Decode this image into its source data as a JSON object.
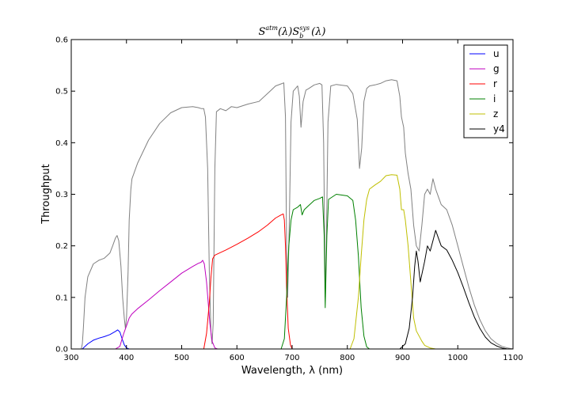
{
  "chart_data": {
    "type": "line",
    "title": "S^{atm}(λ)S_b^{sys}(λ)",
    "title_parts": {
      "main1": "S",
      "sup1": "atm",
      "mid1": "(λ)S",
      "sub2": "b",
      "sup2": "sys",
      "end": "(λ)"
    },
    "xlabel": "Wavelength, λ (nm)",
    "ylabel": "Throughput",
    "xlim": [
      300,
      1100
    ],
    "ylim": [
      0,
      0.6
    ],
    "x_ticks": [
      "300",
      "400",
      "500",
      "600",
      "700",
      "800",
      "900",
      "1000",
      "1100"
    ],
    "y_ticks": [
      "0.0",
      "0.1",
      "0.2",
      "0.3",
      "0.4",
      "0.5",
      "0.6"
    ],
    "grid": false,
    "legend_position": "top-right",
    "series": [
      {
        "name": "u",
        "color": "#0000ff",
        "points": [
          [
            320,
            0.0
          ],
          [
            325,
            0.005
          ],
          [
            330,
            0.01
          ],
          [
            340,
            0.017
          ],
          [
            350,
            0.021
          ],
          [
            360,
            0.024
          ],
          [
            370,
            0.028
          ],
          [
            375,
            0.031
          ],
          [
            380,
            0.034
          ],
          [
            384,
            0.037
          ],
          [
            388,
            0.033
          ],
          [
            392,
            0.02
          ],
          [
            396,
            0.008
          ],
          [
            400,
            0.002
          ],
          [
            405,
            0.0
          ]
        ]
      },
      {
        "name": "g",
        "color": "#bf00bf",
        "points": [
          [
            380,
            0.0
          ],
          [
            388,
            0.005
          ],
          [
            395,
            0.03
          ],
          [
            400,
            0.045
          ],
          [
            405,
            0.06
          ],
          [
            410,
            0.068
          ],
          [
            420,
            0.078
          ],
          [
            440,
            0.095
          ],
          [
            460,
            0.113
          ],
          [
            480,
            0.13
          ],
          [
            500,
            0.147
          ],
          [
            520,
            0.16
          ],
          [
            530,
            0.166
          ],
          [
            535,
            0.168
          ],
          [
            538,
            0.172
          ],
          [
            541,
            0.165
          ],
          [
            545,
            0.13
          ],
          [
            548,
            0.09
          ],
          [
            551,
            0.05
          ],
          [
            555,
            0.015
          ],
          [
            560,
            0.002
          ],
          [
            565,
            0.0
          ]
        ]
      },
      {
        "name": "r",
        "color": "#ff0000",
        "points": [
          [
            540,
            0.0
          ],
          [
            545,
            0.03
          ],
          [
            550,
            0.09
          ],
          [
            553,
            0.14
          ],
          [
            556,
            0.175
          ],
          [
            560,
            0.182
          ],
          [
            580,
            0.192
          ],
          [
            600,
            0.203
          ],
          [
            620,
            0.215
          ],
          [
            640,
            0.228
          ],
          [
            655,
            0.24
          ],
          [
            670,
            0.254
          ],
          [
            680,
            0.26
          ],
          [
            684,
            0.262
          ],
          [
            686,
            0.25
          ],
          [
            688,
            0.2
          ],
          [
            690,
            0.12
          ],
          [
            693,
            0.04
          ],
          [
            697,
            0.008
          ],
          [
            700,
            0.0
          ]
        ]
      },
      {
        "name": "i",
        "color": "#008000",
        "points": [
          [
            680,
            0.0
          ],
          [
            686,
            0.02
          ],
          [
            690,
            0.1
          ],
          [
            694,
            0.2
          ],
          [
            698,
            0.25
          ],
          [
            702,
            0.27
          ],
          [
            710,
            0.275
          ],
          [
            715,
            0.28
          ],
          [
            718,
            0.26
          ],
          [
            722,
            0.27
          ],
          [
            730,
            0.278
          ],
          [
            740,
            0.288
          ],
          [
            750,
            0.292
          ],
          [
            755,
            0.295
          ],
          [
            758,
            0.22
          ],
          [
            760,
            0.08
          ],
          [
            763,
            0.22
          ],
          [
            766,
            0.29
          ],
          [
            780,
            0.3
          ],
          [
            800,
            0.297
          ],
          [
            810,
            0.288
          ],
          [
            815,
            0.25
          ],
          [
            820,
            0.18
          ],
          [
            825,
            0.08
          ],
          [
            830,
            0.025
          ],
          [
            835,
            0.004
          ],
          [
            840,
            0.0
          ]
        ]
      },
      {
        "name": "z",
        "color": "#bfbf00",
        "points": [
          [
            805,
            0.0
          ],
          [
            812,
            0.02
          ],
          [
            820,
            0.1
          ],
          [
            825,
            0.18
          ],
          [
            830,
            0.25
          ],
          [
            835,
            0.29
          ],
          [
            840,
            0.31
          ],
          [
            850,
            0.318
          ],
          [
            860,
            0.325
          ],
          [
            870,
            0.336
          ],
          [
            880,
            0.338
          ],
          [
            890,
            0.337
          ],
          [
            895,
            0.31
          ],
          [
            898,
            0.27
          ],
          [
            902,
            0.27
          ],
          [
            905,
            0.25
          ],
          [
            910,
            0.2
          ],
          [
            915,
            0.13
          ],
          [
            920,
            0.06
          ],
          [
            925,
            0.035
          ],
          [
            930,
            0.025
          ],
          [
            935,
            0.015
          ],
          [
            940,
            0.007
          ],
          [
            950,
            0.002
          ],
          [
            960,
            0.0
          ]
        ]
      },
      {
        "name": "y4",
        "color": "#000000",
        "points": [
          [
            895,
            0.0
          ],
          [
            905,
            0.01
          ],
          [
            912,
            0.04
          ],
          [
            918,
            0.1
          ],
          [
            922,
            0.16
          ],
          [
            925,
            0.19
          ],
          [
            928,
            0.17
          ],
          [
            932,
            0.13
          ],
          [
            936,
            0.15
          ],
          [
            940,
            0.17
          ],
          [
            945,
            0.2
          ],
          [
            950,
            0.19
          ],
          [
            955,
            0.21
          ],
          [
            960,
            0.23
          ],
          [
            965,
            0.215
          ],
          [
            970,
            0.2
          ],
          [
            980,
            0.192
          ],
          [
            990,
            0.172
          ],
          [
            1000,
            0.148
          ],
          [
            1010,
            0.12
          ],
          [
            1020,
            0.09
          ],
          [
            1030,
            0.062
          ],
          [
            1040,
            0.04
          ],
          [
            1050,
            0.023
          ],
          [
            1060,
            0.012
          ],
          [
            1070,
            0.006
          ],
          [
            1080,
            0.002
          ],
          [
            1090,
            0.0
          ]
        ]
      },
      {
        "name": "",
        "color": "#808080",
        "points": [
          [
            318,
            0.0
          ],
          [
            320,
            0.01
          ],
          [
            322,
            0.04
          ],
          [
            325,
            0.1
          ],
          [
            330,
            0.14
          ],
          [
            340,
            0.165
          ],
          [
            350,
            0.172
          ],
          [
            360,
            0.176
          ],
          [
            370,
            0.186
          ],
          [
            375,
            0.2
          ],
          [
            380,
            0.215
          ],
          [
            383,
            0.22
          ],
          [
            386,
            0.21
          ],
          [
            390,
            0.16
          ],
          [
            393,
            0.1
          ],
          [
            396,
            0.06
          ],
          [
            398,
            0.04
          ],
          [
            400,
            0.06
          ],
          [
            403,
            0.15
          ],
          [
            405,
            0.25
          ],
          [
            408,
            0.31
          ],
          [
            410,
            0.33
          ],
          [
            420,
            0.36
          ],
          [
            440,
            0.405
          ],
          [
            460,
            0.437
          ],
          [
            480,
            0.458
          ],
          [
            500,
            0.468
          ],
          [
            520,
            0.47
          ],
          [
            530,
            0.468
          ],
          [
            536,
            0.466
          ],
          [
            540,
            0.466
          ],
          [
            543,
            0.45
          ],
          [
            547,
            0.35
          ],
          [
            550,
            0.15
          ],
          [
            553,
            0.03
          ],
          [
            555,
            0.01
          ],
          [
            557,
            0.05
          ],
          [
            560,
            0.35
          ],
          [
            563,
            0.46
          ],
          [
            570,
            0.466
          ],
          [
            580,
            0.462
          ],
          [
            590,
            0.47
          ],
          [
            600,
            0.468
          ],
          [
            620,
            0.475
          ],
          [
            640,
            0.48
          ],
          [
            660,
            0.5
          ],
          [
            670,
            0.51
          ],
          [
            680,
            0.514
          ],
          [
            685,
            0.516
          ],
          [
            688,
            0.45
          ],
          [
            690,
            0.2
          ],
          [
            692,
            0.1
          ],
          [
            695,
            0.25
          ],
          [
            698,
            0.44
          ],
          [
            702,
            0.5
          ],
          [
            706,
            0.505
          ],
          [
            710,
            0.51
          ],
          [
            713,
            0.49
          ],
          [
            716,
            0.43
          ],
          [
            720,
            0.48
          ],
          [
            725,
            0.502
          ],
          [
            730,
            0.505
          ],
          [
            740,
            0.512
          ],
          [
            750,
            0.515
          ],
          [
            754,
            0.512
          ],
          [
            757,
            0.4
          ],
          [
            759,
            0.2
          ],
          [
            760,
            0.1
          ],
          [
            762,
            0.2
          ],
          [
            765,
            0.44
          ],
          [
            770,
            0.51
          ],
          [
            780,
            0.513
          ],
          [
            800,
            0.51
          ],
          [
            810,
            0.495
          ],
          [
            818,
            0.445
          ],
          [
            822,
            0.35
          ],
          [
            826,
            0.39
          ],
          [
            830,
            0.48
          ],
          [
            835,
            0.505
          ],
          [
            840,
            0.51
          ],
          [
            850,
            0.512
          ],
          [
            860,
            0.515
          ],
          [
            870,
            0.52
          ],
          [
            880,
            0.522
          ],
          [
            890,
            0.52
          ],
          [
            895,
            0.49
          ],
          [
            898,
            0.45
          ],
          [
            900,
            0.44
          ],
          [
            902,
            0.43
          ],
          [
            905,
            0.38
          ],
          [
            910,
            0.34
          ],
          [
            915,
            0.31
          ],
          [
            920,
            0.24
          ],
          [
            925,
            0.2
          ],
          [
            930,
            0.19
          ],
          [
            935,
            0.24
          ],
          [
            940,
            0.3
          ],
          [
            945,
            0.31
          ],
          [
            950,
            0.3
          ],
          [
            955,
            0.33
          ],
          [
            960,
            0.31
          ],
          [
            965,
            0.295
          ],
          [
            970,
            0.28
          ],
          [
            980,
            0.27
          ],
          [
            990,
            0.24
          ],
          [
            1000,
            0.2
          ],
          [
            1010,
            0.16
          ],
          [
            1020,
            0.12
          ],
          [
            1030,
            0.085
          ],
          [
            1040,
            0.057
          ],
          [
            1050,
            0.035
          ],
          [
            1060,
            0.02
          ],
          [
            1070,
            0.011
          ],
          [
            1080,
            0.005
          ],
          [
            1090,
            0.002
          ],
          [
            1100,
            0.0
          ]
        ]
      }
    ]
  }
}
